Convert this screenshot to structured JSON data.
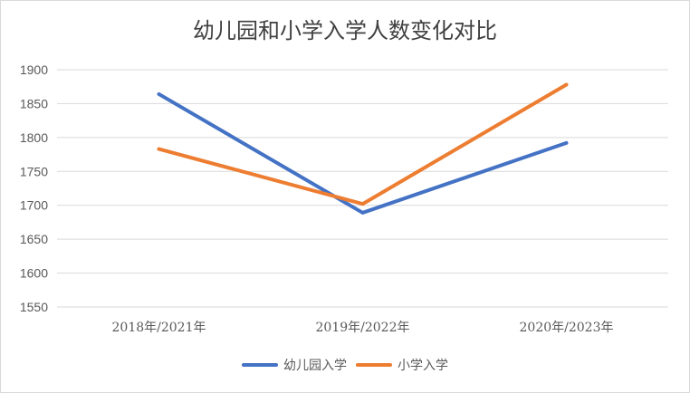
{
  "chart_data": {
    "type": "line",
    "title": "幼儿园和小学入学人数变化对比",
    "categories": [
      "2018年/2021年",
      "2019年/2022年",
      "2020年/2023年"
    ],
    "series": [
      {
        "name": "幼儿园入学",
        "color": "#4472c4",
        "values": [
          1864,
          1689,
          1792
        ]
      },
      {
        "name": "小学入学",
        "color": "#ed7d31",
        "values": [
          1783,
          1702,
          1878
        ]
      }
    ],
    "ylim": [
      1550,
      1900
    ],
    "yticks": [
      1550,
      1600,
      1650,
      1700,
      1750,
      1800,
      1850,
      1900
    ],
    "grid": true,
    "legend": "bottom"
  }
}
